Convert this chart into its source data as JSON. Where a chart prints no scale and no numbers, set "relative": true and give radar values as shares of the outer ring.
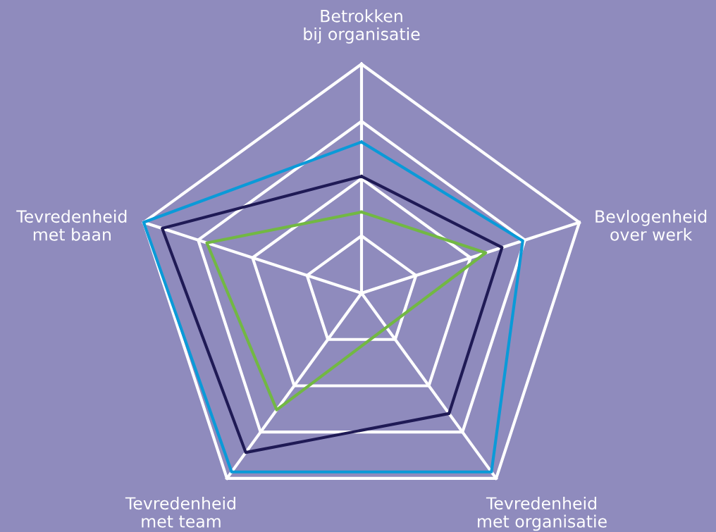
{
  "chart_data": {
    "type": "radar",
    "relative": true,
    "grid": true,
    "categories": [
      "Betrokken\nbij organisatie",
      "Bevlogenheid\nover werk",
      "Tevredenheid\nmet organisatie",
      "Tevredenheid\nmet team",
      "Tevredenheid\nmet baan"
    ],
    "series": [
      {
        "color": "#0a9ad8",
        "values": [
          0.66,
          0.74,
          0.965,
          0.965,
          1.0
        ]
      },
      {
        "color": "#1f1a55",
        "values": [
          0.51,
          0.645,
          0.65,
          0.86,
          0.915
        ]
      },
      {
        "color": "#72b843",
        "values": [
          0.354,
          0.57,
          null,
          0.63,
          0.71
        ]
      }
    ]
  }
}
